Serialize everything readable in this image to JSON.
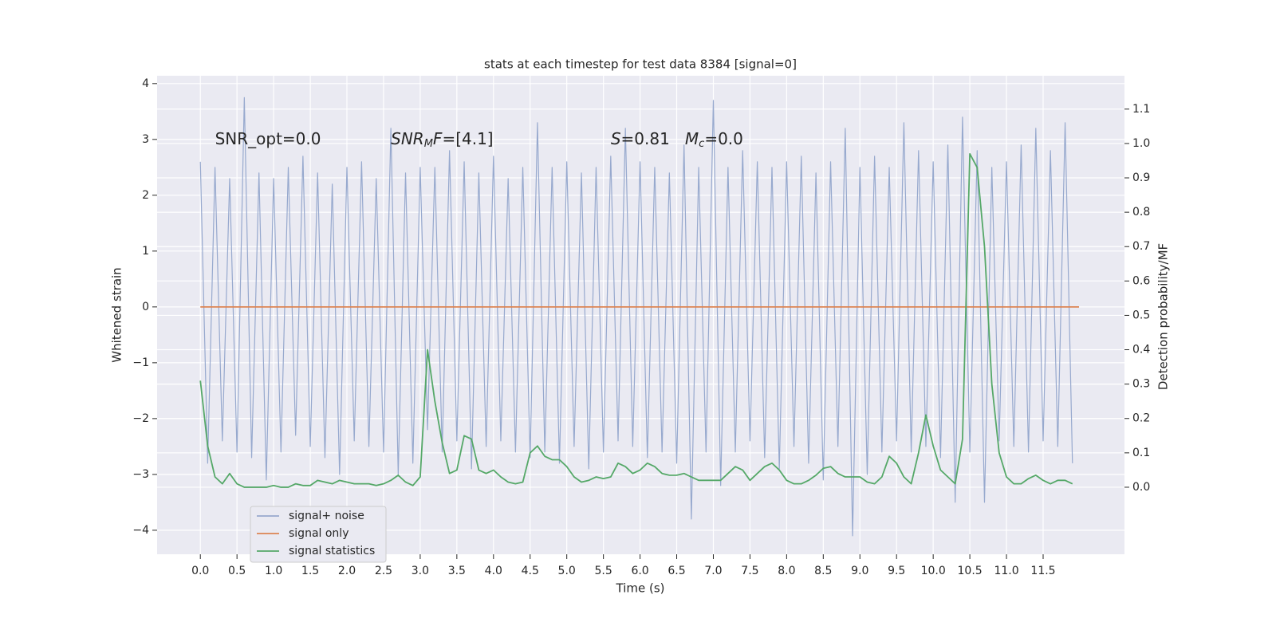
{
  "chart_data": {
    "type": "line",
    "title": "stats at each timestep for test data 8384 [signal=0]",
    "xlabel": "Time (s)",
    "ylabel": "Whitened strain",
    "y2label": "Detection probability/MF",
    "x": [
      0.0,
      0.1,
      0.2,
      0.3,
      0.4,
      0.5,
      0.6,
      0.7,
      0.8,
      0.9,
      1.0,
      1.1,
      1.2,
      1.3,
      1.4,
      1.5,
      1.6,
      1.7,
      1.8,
      1.9,
      2.0,
      2.1,
      2.2,
      2.3,
      2.4,
      2.5,
      2.6,
      2.7,
      2.8,
      2.9,
      3.0,
      3.1,
      3.2,
      3.3,
      3.4,
      3.5,
      3.6,
      3.7,
      3.8,
      3.9,
      4.0,
      4.1,
      4.2,
      4.3,
      4.4,
      4.5,
      4.6,
      4.7,
      4.8,
      4.9,
      5.0,
      5.1,
      5.2,
      5.3,
      5.4,
      5.5,
      5.6,
      5.7,
      5.8,
      5.9,
      6.0,
      6.1,
      6.2,
      6.3,
      6.4,
      6.5,
      6.6,
      6.7,
      6.8,
      6.9,
      7.0,
      7.1,
      7.2,
      7.3,
      7.4,
      7.5,
      7.6,
      7.7,
      7.8,
      7.9,
      8.0,
      8.1,
      8.2,
      8.3,
      8.4,
      8.5,
      8.6,
      8.7,
      8.8,
      8.9,
      9.0,
      9.1,
      9.2,
      9.3,
      9.4,
      9.5,
      9.6,
      9.7,
      9.8,
      9.9,
      10.0,
      10.1,
      10.2,
      10.3,
      10.4,
      10.5,
      10.6,
      10.7,
      10.8,
      10.9,
      11.0,
      11.1,
      11.2,
      11.3,
      11.4,
      11.5,
      11.6,
      11.7,
      11.8,
      11.9
    ],
    "series": [
      {
        "name": "signal+ noise",
        "color": "#97a9ce",
        "axis": "y",
        "values": [
          2.6,
          -2.8,
          2.5,
          -2.4,
          2.3,
          -2.6,
          3.75,
          -2.7,
          2.4,
          -3.1,
          2.3,
          -2.6,
          2.5,
          -2.3,
          2.7,
          -2.5,
          2.4,
          -2.7,
          2.2,
          -3.0,
          2.5,
          -2.4,
          2.6,
          -2.5,
          2.3,
          -2.6,
          3.2,
          -3.0,
          2.4,
          -2.8,
          2.5,
          -2.2,
          2.5,
          -2.6,
          2.8,
          -2.4,
          2.6,
          -2.9,
          2.4,
          -2.5,
          2.7,
          -2.4,
          2.3,
          -2.6,
          2.5,
          -2.7,
          3.3,
          -2.6,
          2.5,
          -2.8,
          2.6,
          -2.5,
          2.4,
          -2.9,
          2.5,
          -2.6,
          2.7,
          -2.4,
          3.2,
          -2.5,
          2.6,
          -2.7,
          2.5,
          -2.6,
          2.4,
          -2.8,
          2.9,
          -3.8,
          2.5,
          -2.6,
          3.7,
          -3.2,
          2.5,
          -2.6,
          2.8,
          -2.4,
          2.6,
          -2.7,
          2.5,
          -2.9,
          2.6,
          -2.5,
          2.7,
          -2.8,
          2.4,
          -3.1,
          2.6,
          -2.5,
          3.2,
          -4.1,
          2.5,
          -3.0,
          2.7,
          -2.6,
          2.5,
          -2.4,
          3.3,
          -2.6,
          2.8,
          -2.5,
          2.6,
          -2.7,
          2.9,
          -3.5,
          3.4,
          -2.6,
          2.8,
          -3.5,
          2.5,
          -2.4,
          2.6,
          -2.5,
          2.9,
          -2.6,
          3.2,
          -2.4,
          2.8,
          -2.5,
          3.3,
          -2.8
        ]
      },
      {
        "name": "signal only",
        "color": "#dd8452",
        "axis": "y",
        "x": [
          0.0,
          11.99
        ],
        "values": [
          0,
          0
        ]
      },
      {
        "name": "signal statistics",
        "color": "#55a868",
        "axis": "y2",
        "values": [
          0.31,
          0.12,
          0.03,
          0.01,
          0.04,
          0.01,
          0.0,
          0.0,
          0.0,
          0.0,
          0.005,
          0.0,
          0.0,
          0.01,
          0.005,
          0.005,
          0.02,
          0.015,
          0.01,
          0.02,
          0.015,
          0.01,
          0.01,
          0.01,
          0.005,
          0.01,
          0.02,
          0.035,
          0.015,
          0.005,
          0.03,
          0.4,
          0.25,
          0.13,
          0.04,
          0.05,
          0.15,
          0.14,
          0.05,
          0.04,
          0.05,
          0.03,
          0.015,
          0.01,
          0.015,
          0.1,
          0.12,
          0.09,
          0.08,
          0.08,
          0.06,
          0.03,
          0.015,
          0.02,
          0.03,
          0.025,
          0.03,
          0.07,
          0.06,
          0.04,
          0.05,
          0.07,
          0.06,
          0.04,
          0.035,
          0.035,
          0.04,
          0.03,
          0.02,
          0.02,
          0.02,
          0.02,
          0.04,
          0.06,
          0.05,
          0.02,
          0.04,
          0.06,
          0.07,
          0.05,
          0.02,
          0.01,
          0.01,
          0.02,
          0.035,
          0.055,
          0.06,
          0.04,
          0.03,
          0.03,
          0.03,
          0.015,
          0.01,
          0.03,
          0.09,
          0.07,
          0.03,
          0.01,
          0.1,
          0.21,
          0.12,
          0.05,
          0.03,
          0.01,
          0.14,
          0.97,
          0.93,
          0.7,
          0.3,
          0.1,
          0.03,
          0.01,
          0.01,
          0.025,
          0.035,
          0.02,
          0.01,
          0.02,
          0.02,
          0.01
        ]
      }
    ],
    "annotations": [
      {
        "x": 0.2,
        "y": 3.0,
        "parts": [
          {
            "text": "SNR_opt=0.0",
            "style": "normal"
          }
        ]
      },
      {
        "x": 2.6,
        "y": 3.0,
        "parts": [
          {
            "text": "SNR",
            "style": "italic"
          },
          {
            "text": "M",
            "style": "sub"
          },
          {
            "text": "F",
            "style": "italic"
          },
          {
            "text": "=[4.1]",
            "style": "normal"
          }
        ]
      },
      {
        "x": 5.6,
        "y": 3.0,
        "parts": [
          {
            "text": "S",
            "style": "italic"
          },
          {
            "text": "=0.81   ",
            "style": "normal"
          },
          {
            "text": "M",
            "style": "italic"
          },
          {
            "text": "c",
            "style": "sub"
          },
          {
            "text": "=0.0",
            "style": "normal"
          }
        ]
      }
    ],
    "xlim": [
      -0.59,
      12.61
    ],
    "ylim": [
      -4.43,
      4.14
    ],
    "y2lim": [
      -0.195,
      1.197
    ],
    "xticks": [
      {
        "value": 0,
        "label": "0.0"
      },
      {
        "value": 0.5,
        "label": "0.5"
      },
      {
        "value": 1,
        "label": "1.0"
      },
      {
        "value": 1.5,
        "label": "1.5"
      },
      {
        "value": 2,
        "label": "2.0"
      },
      {
        "value": 2.5,
        "label": "2.5"
      },
      {
        "value": 3,
        "label": "3.0"
      },
      {
        "value": 3.5,
        "label": "3.5"
      },
      {
        "value": 4,
        "label": "4.0"
      },
      {
        "value": 4.5,
        "label": "4.5"
      },
      {
        "value": 5,
        "label": "5.0"
      },
      {
        "value": 5.5,
        "label": "5.5"
      },
      {
        "value": 6,
        "label": "6.0"
      },
      {
        "value": 6.5,
        "label": "6.5"
      },
      {
        "value": 7,
        "label": "7.0"
      },
      {
        "value": 7.5,
        "label": "7.5"
      },
      {
        "value": 8,
        "label": "8.0"
      },
      {
        "value": 8.5,
        "label": "8.5"
      },
      {
        "value": 9,
        "label": "9.0"
      },
      {
        "value": 9.5,
        "label": "9.5"
      },
      {
        "value": 10,
        "label": "10.0"
      },
      {
        "value": 10.5,
        "label": "10.5"
      },
      {
        "value": 11,
        "label": "11.0"
      },
      {
        "value": 11.5,
        "label": "11.5"
      }
    ],
    "yticks": [
      {
        "value": -4,
        "label": "−4"
      },
      {
        "value": -3,
        "label": "−3"
      },
      {
        "value": -2,
        "label": "−2"
      },
      {
        "value": -1,
        "label": "−1"
      },
      0,
      1,
      2,
      3,
      4
    ],
    "y2ticks": [
      {
        "value": 0,
        "label": "0.0"
      },
      0.1,
      0.2,
      0.3,
      0.4,
      0.5,
      0.6,
      0.7,
      0.8,
      0.9,
      {
        "value": 1,
        "label": "1.0"
      },
      1.1
    ],
    "grid": true,
    "legend": "lower left"
  }
}
